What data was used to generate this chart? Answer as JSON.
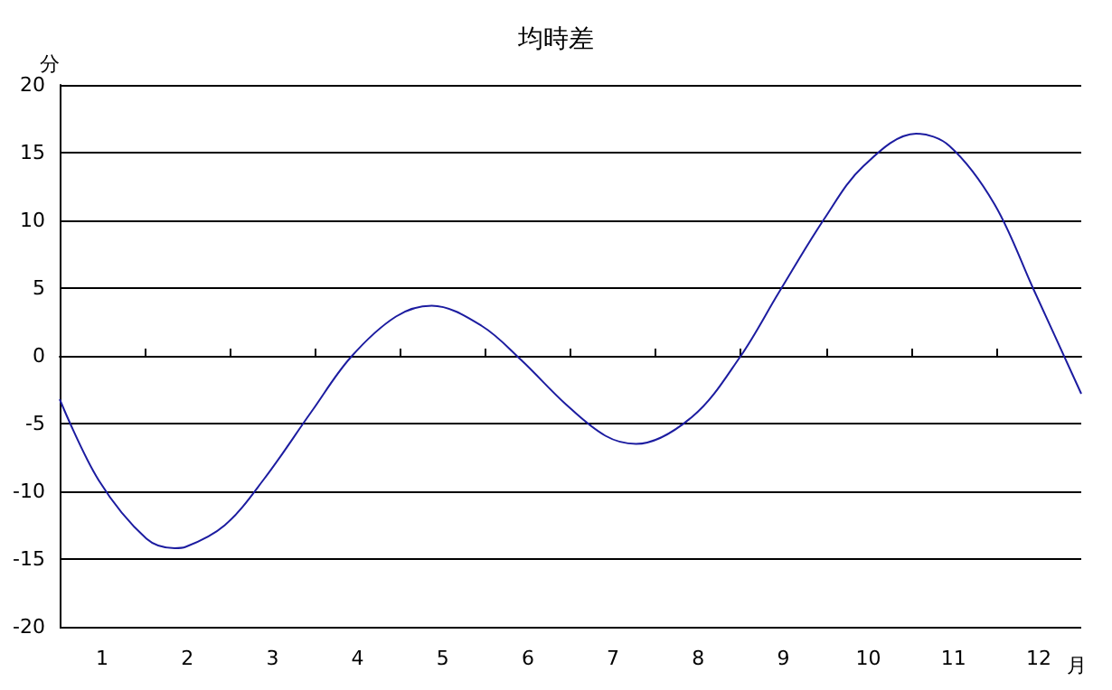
{
  "chart_data": {
    "type": "line",
    "title": "均時差",
    "xlabel": "月",
    "ylabel": "分",
    "x": [
      0.5,
      0.96,
      1.52,
      1.85,
      1.98,
      2.44,
      2.9,
      3.46,
      3.92,
      4.45,
      4.87,
      5.46,
      5.92,
      6.45,
      6.91,
      7.27,
      7.93,
      8.49,
      8.95,
      9.48,
      9.94,
      10.56,
      10.95,
      11.48,
      11.94,
      12.5
    ],
    "series": [
      {
        "color": "#1c1ca0",
        "values": [
          -3.2,
          -9.2,
          -13.5,
          -14.2,
          -14.1,
          -12.5,
          -9.1,
          -4.1,
          -0.1,
          2.9,
          3.7,
          2.2,
          -0.3,
          -3.6,
          -5.9,
          -6.5,
          -4.5,
          -0.1,
          4.7,
          10.1,
          14.0,
          16.4,
          15.5,
          11.2,
          4.9,
          -2.8
        ]
      }
    ],
    "xlim": [
      0.5,
      12.5
    ],
    "xticks": [
      1,
      {
        "value": 1.5,
        "label": null
      },
      2,
      {
        "value": 2.5,
        "label": null
      },
      3,
      {
        "value": 3.5,
        "label": null
      },
      4,
      {
        "value": 4.5,
        "label": null
      },
      5,
      {
        "value": 5.5,
        "label": null
      },
      6,
      {
        "value": 6.5,
        "label": null
      },
      7,
      {
        "value": 7.5,
        "label": null
      },
      8,
      {
        "value": 8.5,
        "label": null
      },
      9,
      {
        "value": 9.5,
        "label": null
      },
      10,
      {
        "value": 10.5,
        "label": null
      },
      11,
      {
        "value": 11.5,
        "label": null
      },
      12
    ],
    "ylim": [
      -20,
      20
    ],
    "yticks": [
      -20,
      -15,
      -10,
      -5,
      0,
      5,
      10,
      15,
      20
    ],
    "grid": "y",
    "marker": "none",
    "line_style": "solid"
  }
}
